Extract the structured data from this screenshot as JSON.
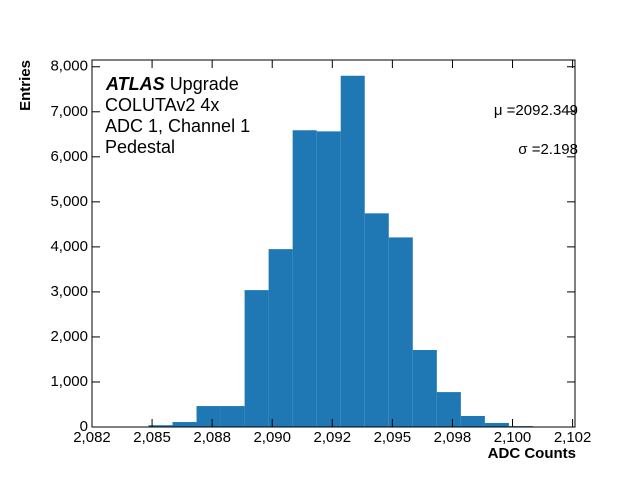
{
  "chart_data": {
    "type": "histogram",
    "xlabel": "ADC Counts",
    "ylabel": "Entries",
    "experiment": "ATLAS",
    "experiment_suffix": "Upgrade",
    "annotations": [
      "COLUTAv2 4x",
      "ADC 1, Channel 1",
      "Pedestal"
    ],
    "stats": [
      "μ =2092.349",
      "σ =2.198"
    ],
    "color": "#1f77b4",
    "bins": [
      2084.85,
      2085.85,
      2086.85,
      2087.85,
      2088.85,
      2089.85,
      2090.85,
      2091.85,
      2092.85,
      2093.85,
      2094.85,
      2095.85,
      2096.85,
      2097.85,
      2098.85,
      2099.85,
      2100.85
    ],
    "values": [
      40,
      110,
      465,
      465,
      3040,
      3950,
      6590,
      6565,
      7800,
      4745,
      4210,
      1710,
      775,
      245,
      90,
      20
    ],
    "xlim": [
      2082.5,
      2102.6
    ],
    "xticks": [
      {
        "value": 2082.5,
        "label": "2,082"
      },
      {
        "value": 2085,
        "label": "2,085"
      },
      {
        "value": 2087.5,
        "label": "2,088"
      },
      {
        "value": 2090,
        "label": "2,090"
      },
      {
        "value": 2092.5,
        "label": "2,092"
      },
      {
        "value": 2095,
        "label": "2,095"
      },
      {
        "value": 2097.5,
        "label": "2,098"
      },
      {
        "value": 2100,
        "label": "2,100"
      },
      {
        "value": 2102.5,
        "label": "2,102"
      }
    ],
    "ylim": [
      0,
      8150
    ],
    "yticks": [
      0,
      {
        "value": 1000,
        "label": "1,000"
      },
      {
        "value": 2000,
        "label": "2,000"
      },
      {
        "value": 3000,
        "label": "3,000"
      },
      {
        "value": 4000,
        "label": "4,000"
      },
      {
        "value": 5000,
        "label": "5,000"
      },
      {
        "value": 6000,
        "label": "6,000"
      },
      {
        "value": 7000,
        "label": "7,000"
      },
      {
        "value": 8000,
        "label": "8,000"
      }
    ]
  }
}
